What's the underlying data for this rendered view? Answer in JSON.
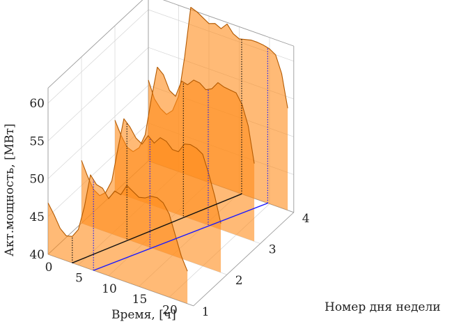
{
  "chart_data": {
    "type": "area",
    "projection": "3d-waterfall",
    "xlabel": "Время, [ч]",
    "ylabel": "Номер дня недели",
    "zlabel": "Акт.мощность, [МВт]",
    "xlim": [
      0,
      24
    ],
    "ylim": [
      1,
      4
    ],
    "zlim": [
      40,
      62
    ],
    "xticks": [
      0,
      5,
      10,
      15,
      20
    ],
    "yticks": [
      1,
      2,
      3,
      4
    ],
    "zticks": [
      40,
      45,
      50,
      55,
      60
    ],
    "grid": true,
    "fill_color": "#ff8c1a",
    "fill_opacity": 0.6,
    "line_color": "#b35900",
    "x": [
      0,
      1,
      2,
      3,
      4,
      5,
      6,
      7,
      8,
      9,
      10,
      11,
      12,
      13,
      14,
      15,
      16,
      17,
      18,
      19,
      20,
      21,
      22,
      23
    ],
    "series": [
      {
        "day": 1,
        "values": [
          46.8,
          45.5,
          44.0,
          43.3,
          43.5,
          44.7,
          48.0,
          52.5,
          51.5,
          51.3,
          50.2,
          51.5,
          51.3,
          52.8,
          52.3,
          51.8,
          52.0,
          52.5,
          52.6,
          52.2,
          51.0,
          48.5,
          46.0,
          44.3
        ]
      },
      {
        "day": 2,
        "values": [
          48.3,
          46.5,
          45.0,
          44.5,
          45.2,
          47.0,
          51.5,
          55.8,
          55.0,
          53.8,
          53.3,
          54.7,
          54.0,
          55.0,
          54.8,
          54.0,
          54.0,
          55.3,
          55.5,
          55.3,
          54.8,
          52.5,
          49.8,
          46.5
        ]
      },
      {
        "day": 3,
        "values": [
          49.5,
          47.8,
          46.5,
          46.2,
          47.0,
          49.0,
          54.0,
          58.5,
          57.8,
          56.0,
          55.5,
          57.8,
          57.6,
          58.5,
          58.4,
          57.8,
          58.2,
          59.3,
          59.0,
          58.9,
          58.8,
          57.5,
          55.0,
          50.3
        ]
      },
      {
        "day": 4,
        "values": [
          50.7,
          48.5,
          47.5,
          47.0,
          47.8,
          50.0,
          55.5,
          62.3,
          62.0,
          61.5,
          61.0,
          61.3,
          60.9,
          61.8,
          60.8,
          60.4,
          60.6,
          60.8,
          60.8,
          60.7,
          60.5,
          60.0,
          57.8,
          53.5
        ]
      }
    ],
    "markers": {
      "dotted_dark": [
        4,
        7.5,
        11.3,
        15.4
      ],
      "dotted_blue": [
        7.5,
        11.3,
        15.4,
        19.7
      ],
      "line_dark": {
        "from": [
          4,
          1
        ],
        "to": [
          15.4,
          4
        ]
      },
      "line_blue": {
        "from": [
          7.5,
          1
        ],
        "to": [
          19.7,
          4
        ]
      }
    }
  }
}
